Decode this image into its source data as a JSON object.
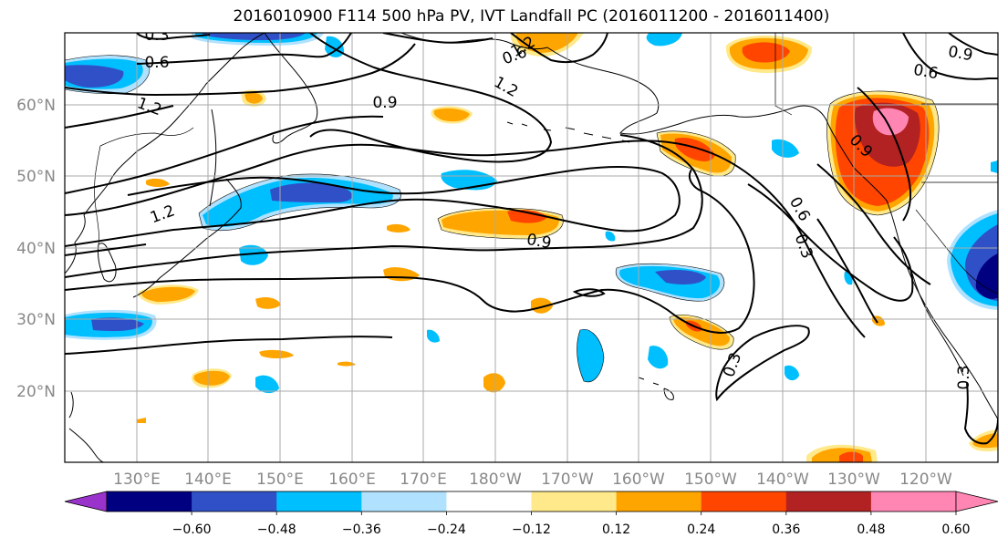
{
  "title": "2016010900 F114 500 hPa PV, IVT Landfall PC (2016011200 - 2016011400)",
  "latitude_labels": [
    "60°N",
    "50°N",
    "40°N",
    "30°N",
    "20°N"
  ],
  "longitude_labels": [
    "130°E",
    "140°E",
    "150°E",
    "160°E",
    "170°E",
    "180°W",
    "170°W",
    "160°W",
    "150°W",
    "140°W",
    "130°W",
    "120°W"
  ],
  "contour_labels": [
    "0.3",
    "0.6",
    "1.2",
    "0.9",
    "1.2",
    "1.2",
    "0.9",
    "0.6",
    "0.9",
    "1.2",
    "0.9",
    "0.6",
    "0.3",
    "0.3",
    "0.3",
    "0.6"
  ],
  "colorbar": {
    "colors": [
      "#9933cc",
      "#000080",
      "#3050c8",
      "#00bfff",
      "#b0e2ff",
      "#ffffff",
      "#ffe98a",
      "#ffa500",
      "#ff4500",
      "#b22222",
      "#ff85b3",
      "#ff85b3"
    ],
    "tick_labels": [
      "−0.60",
      "−0.48",
      "−0.36",
      "−0.24",
      "−0.12",
      "0.12",
      "0.24",
      "0.36",
      "0.48",
      "0.60"
    ]
  },
  "fill_colors": {
    "neg_light": "#b0e2ff",
    "neg_mid": "#00bfff",
    "neg_strong": "#3050c8",
    "neg_max": "#000080",
    "pos_light": "#ffe98a",
    "pos_mid": "#ffa500",
    "pos_strong": "#ff4500",
    "pos_high": "#b22222",
    "pos_max": "#ff85b3"
  }
}
